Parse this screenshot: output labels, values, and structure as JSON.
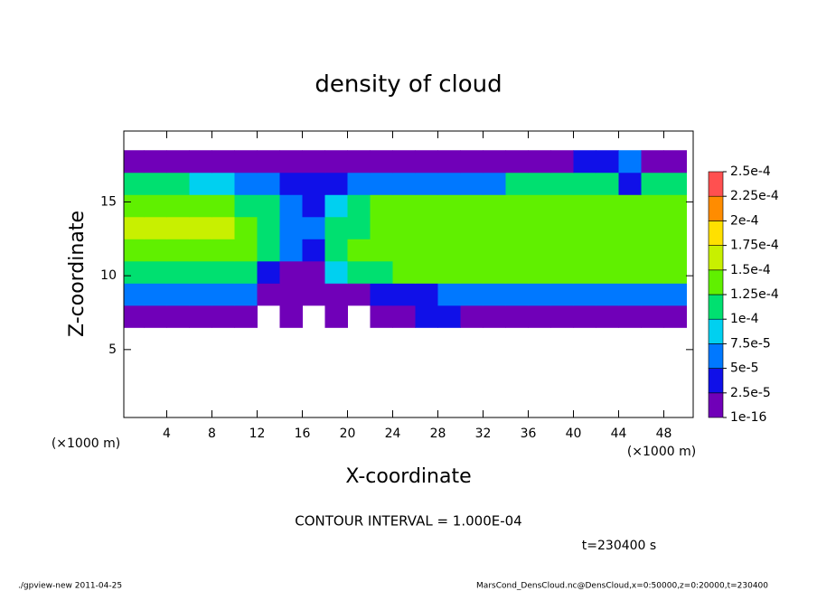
{
  "chart_data": {
    "type": "contour",
    "title": "density of cloud",
    "x_label": "X-coordinate",
    "y_label": "Z-coordinate",
    "x_unit": "(×1000 m)",
    "y_unit": "(×1000 m)",
    "xlim": [
      0.2,
      50.6
    ],
    "ylim": [
      0.4,
      19.8
    ],
    "xticks": [
      4,
      8,
      12,
      16,
      20,
      24,
      28,
      32,
      36,
      40,
      44,
      48
    ],
    "yticks": [
      5,
      10,
      15
    ],
    "x_bins": [
      0,
      2,
      4,
      6,
      8,
      10,
      12,
      14,
      16,
      18,
      20,
      22,
      24,
      26,
      28,
      30,
      32,
      34,
      36,
      38,
      40,
      42,
      44,
      46,
      48,
      50
    ],
    "y_bins": [
      6.5,
      8,
      9.5,
      11,
      12.5,
      14,
      15.5,
      17,
      18.5
    ],
    "values": [
      [
        2e-05,
        2e-05,
        2e-05,
        2e-05,
        2e-05,
        1e-05,
        null,
        1e-05,
        null,
        1e-05,
        null,
        1e-05,
        2e-05,
        3e-05,
        3e-05,
        2e-05,
        2e-05,
        2e-05,
        2e-05,
        2e-05,
        2e-05,
        2e-05,
        2e-05,
        2e-05,
        2e-05
      ],
      [
        7e-05,
        7e-05,
        7e-05,
        7e-05,
        7e-05,
        5e-05,
        1e-05,
        1e-05,
        1e-05,
        1e-05,
        2e-05,
        3e-05,
        3e-05,
        4e-05,
        5e-05,
        7e-05,
        7e-05,
        7e-05,
        7e-05,
        7e-05,
        7e-05,
        7e-05,
        7e-05,
        7e-05,
        7e-05
      ],
      [
        0.00011,
        0.00011,
        0.00011,
        0.00011,
        0.00011,
        0.000105,
        3e-05,
        1e-05,
        2e-05,
        8e-05,
        0.00011,
        0.00012,
        0.000125,
        0.000125,
        0.000125,
        0.000125,
        0.000125,
        0.000125,
        0.000125,
        0.000125,
        0.000125,
        0.000125,
        0.000125,
        0.000125,
        0.000125
      ],
      [
        0.00014,
        0.00014,
        0.00014,
        0.00014,
        0.00014,
        0.00013,
        0.000115,
        5e-05,
        4e-05,
        0.00011,
        0.000135,
        0.000135,
        0.000135,
        0.000135,
        0.000135,
        0.000135,
        0.000135,
        0.000135,
        0.000135,
        0.000135,
        0.000135,
        0.000135,
        0.000135,
        0.000135,
        0.000135
      ],
      [
        0.00015,
        0.00015,
        0.00015,
        0.00015,
        0.00015,
        0.00014,
        0.000115,
        6e-05,
        6e-05,
        0.000105,
        0.00011,
        0.000145,
        0.000145,
        0.000145,
        0.000145,
        0.000145,
        0.000145,
        0.000145,
        0.000145,
        0.000145,
        0.000145,
        0.000145,
        0.000145,
        0.000145,
        0.000145
      ],
      [
        0.000145,
        0.000145,
        0.000145,
        0.000145,
        0.000145,
        0.00012,
        0.0001,
        7e-05,
        4e-05,
        9e-05,
        0.0001,
        0.00013,
        0.000145,
        0.000145,
        0.000145,
        0.000145,
        0.000145,
        0.000145,
        0.000145,
        0.000145,
        0.000145,
        0.000145,
        0.000145,
        0.000145,
        0.000145
      ],
      [
        0.00011,
        0.00011,
        0.00011,
        9e-05,
        8e-05,
        6e-05,
        5e-05,
        3e-05,
        3e-05,
        4e-05,
        5e-05,
        7e-05,
        7e-05,
        7e-05,
        7e-05,
        7e-05,
        7e-05,
        0.0001,
        0.0001,
        0.0001,
        0.0001,
        0.0001,
        4e-05,
        0.000105,
        0.000105
      ],
      [
        2e-05,
        2e-05,
        2e-05,
        2e-05,
        2e-05,
        2e-05,
        2e-05,
        2e-05,
        1e-05,
        1e-05,
        1e-05,
        1e-05,
        1e-05,
        2e-05,
        2e-05,
        2e-05,
        2e-05,
        2e-05,
        2e-05,
        2e-05,
        3e-05,
        3e-05,
        5e-05,
        2e-05,
        2e-05
      ]
    ],
    "levels": [
      {
        "value": 1e-16,
        "label": "1e-16"
      },
      {
        "value": 2.5e-05,
        "label": "2.5e-5"
      },
      {
        "value": 5e-05,
        "label": "5e-5"
      },
      {
        "value": 7.5e-05,
        "label": "7.5e-5"
      },
      {
        "value": 0.0001,
        "label": "1e-4"
      },
      {
        "value": 0.000125,
        "label": "1.25e-4"
      },
      {
        "value": 0.00015,
        "label": "1.5e-4"
      },
      {
        "value": 0.000175,
        "label": "1.75e-4"
      },
      {
        "value": 0.0002,
        "label": "2e-4"
      },
      {
        "value": 0.000225,
        "label": "2.25e-4"
      },
      {
        "value": 0.00025,
        "label": "2.5e-4"
      }
    ],
    "colors": [
      "#7000b8",
      "#1010e8",
      "#0078ff",
      "#00d0f0",
      "#00e070",
      "#60f000",
      "#c8f000",
      "#ffe000",
      "#ff8c00",
      "#ff5050"
    ],
    "contour_interval": "CONTOUR INTERVAL = 1.000E-04",
    "time": "t=230400 s",
    "footer_left": "./gpview-new   2011-04-25",
    "footer_right": "MarsCond_DensCloud.nc@DensCloud,x=0:50000,z=0:20000,t=230400"
  }
}
